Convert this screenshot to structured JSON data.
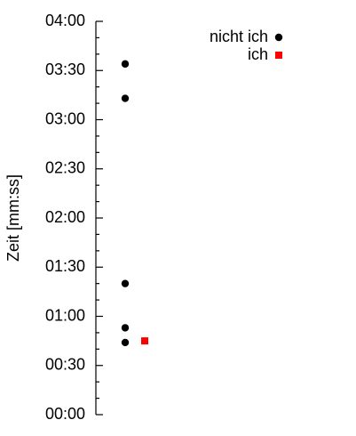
{
  "chart_data": {
    "type": "scatter",
    "y_label": "Zeit [mm:ss]",
    "ylim": [
      0,
      240
    ],
    "yticks": [
      {
        "value": 0,
        "label": "00:00"
      },
      {
        "value": 30,
        "label": "00:30"
      },
      {
        "value": 60,
        "label": "01:00"
      },
      {
        "value": 90,
        "label": "01:30"
      },
      {
        "value": 120,
        "label": "02:00"
      },
      {
        "value": 150,
        "label": "02:30"
      },
      {
        "value": 180,
        "label": "03:00"
      },
      {
        "value": 210,
        "label": "03:30"
      },
      {
        "value": 240,
        "label": "04:00"
      }
    ],
    "yminorticks": [
      10,
      20,
      40,
      50,
      70,
      80,
      100,
      110,
      130,
      140,
      160,
      170,
      190,
      200,
      220,
      230
    ],
    "legend": "top-right",
    "series": [
      {
        "name": "nicht ich",
        "color": "#000000",
        "marker": "circle",
        "values": [
          214,
          193,
          80,
          53,
          44
        ]
      },
      {
        "name": "ich",
        "color": "#ff0000",
        "marker": "square",
        "values": [
          45
        ]
      }
    ]
  }
}
